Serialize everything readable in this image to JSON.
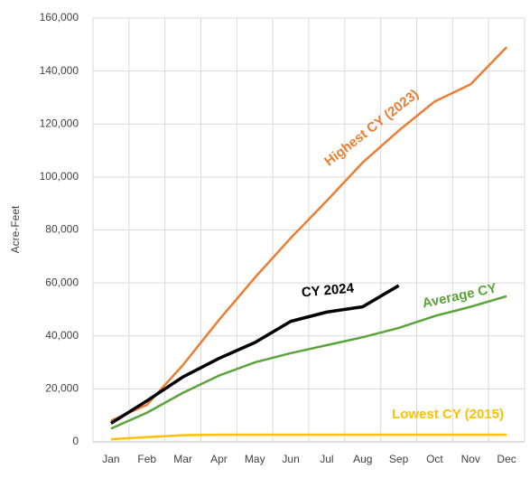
{
  "chart_data": {
    "type": "line",
    "y_label": "Acre-Feet",
    "categories": [
      "Jan",
      "Feb",
      "Mar",
      "Apr",
      "May",
      "Jun",
      "Jul",
      "Aug",
      "Sep",
      "Oct",
      "Nov",
      "Dec"
    ],
    "series": [
      {
        "name": "Highest CY (2023)",
        "color": "#ED7D31",
        "values": [
          8000,
          14000,
          29000,
          46000,
          62000,
          77000,
          91000,
          105500,
          117500,
          128500,
          135000,
          149000
        ]
      },
      {
        "name": "CY 2024",
        "color": "#000000",
        "values": [
          7000,
          15500,
          24500,
          31500,
          37500,
          45500,
          49000,
          51000,
          59000,
          null,
          null,
          null
        ]
      },
      {
        "name": "Average CY",
        "color": "#5BA33B",
        "values": [
          5000,
          11000,
          18500,
          25000,
          30000,
          33500,
          36500,
          39500,
          43000,
          47500,
          51000,
          55000
        ]
      },
      {
        "name": "Lowest CY (2015)",
        "color": "#FFC000",
        "values": [
          1000,
          1800,
          2500,
          2700,
          2700,
          2700,
          2700,
          2700,
          2700,
          2700,
          2700,
          2700
        ]
      }
    ],
    "ylim": [
      0,
      160000
    ],
    "yticks": [
      0,
      {
        "value": 20000,
        "label": "20,000"
      },
      {
        "value": 40000,
        "label": "40,000"
      },
      {
        "value": 60000,
        "label": "60,000"
      },
      {
        "value": 80000,
        "label": "80,000"
      },
      {
        "value": 100000,
        "label": "100,000"
      },
      {
        "value": 120000,
        "label": "120,000"
      },
      {
        "value": 140000,
        "label": "140,000"
      },
      {
        "value": 160000,
        "label": "160,000"
      }
    ],
    "grid": true
  }
}
